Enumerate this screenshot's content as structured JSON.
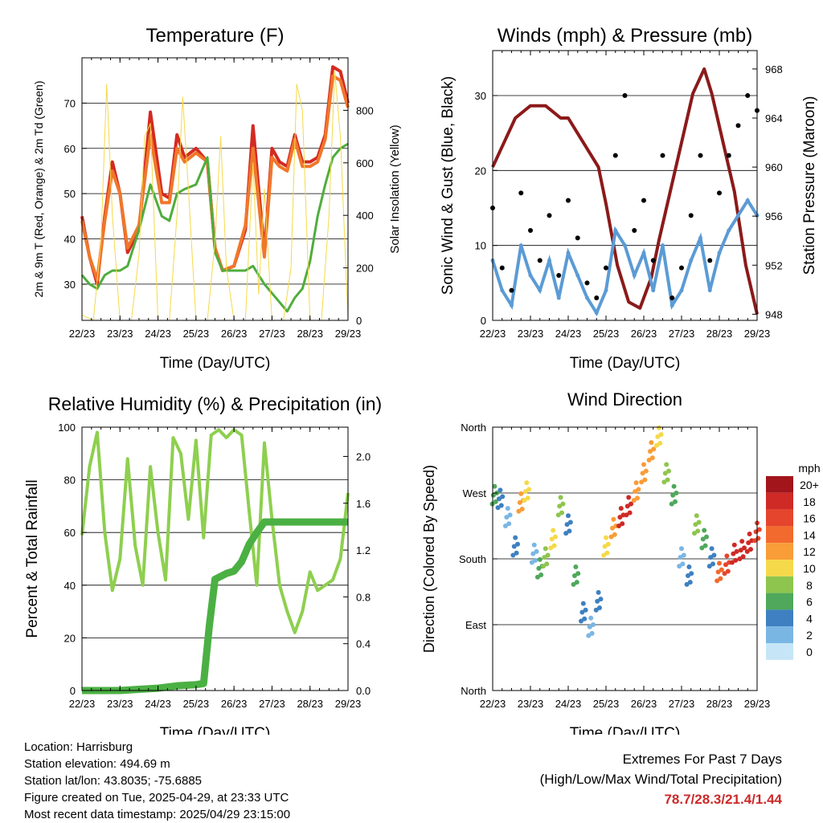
{
  "chart_data": [
    {
      "type": "line",
      "title": "Temperature (F)",
      "xlabel": "Time (Day/UTC)",
      "ylabel": "2m & 9m T (Red, Orange) & 2m Td (Green)",
      "y2label": "Solar Insolation (Yellow)",
      "x_ticks": [
        "22/23",
        "23/23",
        "24/23",
        "25/23",
        "26/23",
        "27/23",
        "28/23",
        "29/23"
      ],
      "ylim": [
        22,
        80
      ],
      "y_ticks": [
        30,
        40,
        50,
        60,
        70
      ],
      "y2lim": [
        0,
        1000
      ],
      "y2_ticks": [
        0,
        200,
        400,
        600,
        800
      ],
      "grid": true,
      "series": [
        {
          "color": "#d42a22",
          "x": [
            0,
            0.2,
            0.4,
            0.6,
            0.8,
            1.0,
            1.2,
            1.5,
            1.8,
            2.1,
            2.3,
            2.5,
            2.7,
            3.0,
            3.3,
            3.5,
            3.7,
            4.0,
            4.3,
            4.5,
            4.8,
            5.0,
            5.2,
            5.4,
            5.6,
            5.8,
            6.0,
            6.2,
            6.4,
            6.6,
            6.8,
            7.0
          ],
          "values": [
            45,
            36,
            30,
            45,
            57,
            50,
            37,
            42,
            68,
            50,
            49,
            63,
            58,
            60,
            57,
            38,
            33,
            34,
            42,
            65,
            37,
            60,
            57,
            56,
            63,
            57,
            57,
            58,
            63,
            78,
            77,
            70
          ]
        },
        {
          "color": "#f0772a",
          "x": [
            0,
            0.2,
            0.4,
            0.6,
            0.8,
            1.0,
            1.2,
            1.5,
            1.8,
            2.1,
            2.3,
            2.5,
            2.7,
            3.0,
            3.3,
            3.5,
            3.7,
            4.0,
            4.3,
            4.5,
            4.8,
            5.0,
            5.2,
            5.4,
            5.6,
            5.8,
            6.0,
            6.2,
            6.4,
            6.6,
            6.8,
            7.0
          ],
          "values": [
            44,
            36,
            31,
            44,
            55,
            50,
            38,
            43,
            63,
            48,
            48,
            60,
            57,
            59,
            57,
            38,
            33,
            34,
            43,
            60,
            36,
            58,
            56,
            55,
            62,
            56,
            56,
            57,
            62,
            76,
            75,
            69
          ]
        },
        {
          "color": "#4fad3d",
          "x": [
            0,
            0.2,
            0.4,
            0.6,
            0.8,
            1.0,
            1.2,
            1.5,
            1.8,
            2.1,
            2.3,
            2.5,
            2.7,
            3.0,
            3.3,
            3.5,
            3.7,
            4.0,
            4.3,
            4.5,
            4.8,
            5.0,
            5.2,
            5.4,
            5.6,
            5.8,
            6.0,
            6.2,
            6.4,
            6.6,
            6.8,
            7.0
          ],
          "values": [
            32,
            30,
            29,
            32,
            33,
            33,
            34,
            42,
            52,
            45,
            44,
            50,
            51,
            52,
            58,
            37,
            33,
            33,
            33,
            34,
            30,
            28,
            26,
            24,
            27,
            29,
            35,
            45,
            52,
            58,
            60,
            61
          ]
        },
        {
          "color": "#f5d94a",
          "axis": "y2",
          "x": [
            0,
            0.3,
            0.5,
            0.65,
            0.8,
            1.0,
            1.3,
            1.5,
            1.65,
            1.8,
            2.0,
            2.3,
            2.5,
            2.65,
            2.8,
            3.0,
            3.3,
            3.5,
            3.65,
            3.8,
            4.0,
            4.3,
            4.5,
            4.65,
            4.8,
            5.0,
            5.3,
            5.5,
            5.65,
            5.8,
            6.0,
            6.3,
            6.5,
            6.65,
            6.8,
            7.0
          ],
          "values": [
            20,
            0,
            300,
            900,
            400,
            0,
            0,
            250,
            700,
            750,
            0,
            0,
            400,
            850,
            500,
            0,
            0,
            300,
            700,
            200,
            0,
            0,
            600,
            100,
            500,
            0,
            0,
            200,
            900,
            800,
            0,
            0,
            400,
            950,
            700,
            0
          ]
        }
      ]
    },
    {
      "type": "scatter",
      "title": "Winds (mph) & Pressure (mb)",
      "xlabel": "Time (Day/UTC)",
      "ylabel": "Sonic Wind & Gust (Blue, Black)",
      "y2label": "Station Pressure (Maroon)",
      "x_ticks": [
        "22/23",
        "23/23",
        "24/23",
        "25/23",
        "26/23",
        "27/23",
        "28/23",
        "29/23"
      ],
      "ylim": [
        0,
        36
      ],
      "y_ticks": [
        0,
        10,
        20,
        30
      ],
      "y2lim": [
        947.5,
        969.5
      ],
      "y2_ticks": [
        948,
        952,
        956,
        960,
        964,
        968
      ],
      "grid": true,
      "series": [
        {
          "color": "#8b1a1a",
          "axis": "y2",
          "x": [
            0,
            0.3,
            0.6,
            1.0,
            1.4,
            1.8,
            2.0,
            2.4,
            2.8,
            3.0,
            3.3,
            3.6,
            3.9,
            4.2,
            4.4,
            4.7,
            5.0,
            5.3,
            5.6,
            5.8,
            6.1,
            6.4,
            6.7,
            7.0
          ],
          "values": [
            960,
            962,
            964,
            965,
            965,
            964,
            964,
            962,
            960,
            957,
            952,
            949,
            948.5,
            951,
            954,
            958,
            962,
            966,
            968,
            966,
            962,
            958,
            952,
            948
          ]
        },
        {
          "color": "#5b9bd5",
          "x": [
            0,
            0.25,
            0.5,
            0.75,
            1.0,
            1.25,
            1.5,
            1.75,
            2.0,
            2.25,
            2.5,
            2.75,
            3.0,
            3.25,
            3.5,
            3.75,
            4.0,
            4.25,
            4.5,
            4.75,
            5.0,
            5.25,
            5.5,
            5.75,
            6.0,
            6.25,
            6.5,
            6.75,
            7.0
          ],
          "values": [
            8,
            4,
            2,
            10,
            6,
            4,
            8,
            3,
            9,
            6,
            3,
            1,
            4,
            12,
            10,
            6,
            9,
            4,
            10,
            2,
            4,
            8,
            11,
            4,
            9,
            12,
            14,
            16,
            14
          ]
        },
        {
          "color": "#000000",
          "x": [
            0,
            0.25,
            0.5,
            0.75,
            1.0,
            1.25,
            1.5,
            1.75,
            2.0,
            2.25,
            2.5,
            2.75,
            3.0,
            3.25,
            3.5,
            3.75,
            4.0,
            4.25,
            4.5,
            4.75,
            5.0,
            5.25,
            5.5,
            5.75,
            6.0,
            6.25,
            6.5,
            6.75,
            7.0
          ],
          "values": [
            15,
            7,
            4,
            17,
            12,
            8,
            14,
            6,
            16,
            11,
            5,
            3,
            7,
            22,
            30,
            12,
            16,
            8,
            22,
            3,
            7,
            14,
            22,
            8,
            17,
            22,
            26,
            30,
            28
          ]
        }
      ]
    },
    {
      "type": "line",
      "title": "Relative Humidity (%) & Precipitation (in)",
      "xlabel": "Time (Day/UTC)",
      "ylabel": "Percent & Total Rainfall",
      "x_ticks": [
        "22/23",
        "23/23",
        "24/23",
        "25/23",
        "26/23",
        "27/23",
        "28/23",
        "29/23"
      ],
      "ylim": [
        0,
        100
      ],
      "y_ticks": [
        0,
        20,
        40,
        60,
        80,
        100
      ],
      "y2lim": [
        0,
        2.25
      ],
      "y2_ticks": [
        "0.0",
        "0.4",
        "0.8",
        "1.2",
        "1.6",
        "2.0"
      ],
      "grid": true,
      "series": [
        {
          "color": "#8ecf4f",
          "x": [
            0,
            0.2,
            0.4,
            0.6,
            0.8,
            1.0,
            1.2,
            1.4,
            1.6,
            1.8,
            2.0,
            2.2,
            2.4,
            2.6,
            2.8,
            3.0,
            3.2,
            3.4,
            3.6,
            3.8,
            4.0,
            4.2,
            4.4,
            4.6,
            4.8,
            5.0,
            5.2,
            5.4,
            5.6,
            5.8,
            6.0,
            6.2,
            6.4,
            6.6,
            6.8,
            7.0
          ],
          "values": [
            59,
            85,
            98,
            60,
            38,
            50,
            88,
            55,
            40,
            85,
            60,
            42,
            96,
            90,
            65,
            95,
            58,
            97,
            99,
            96,
            99,
            97,
            68,
            40,
            94,
            65,
            40,
            30,
            22,
            30,
            45,
            38,
            40,
            42,
            50,
            75
          ]
        },
        {
          "color": "#4bb043",
          "axis": "y2",
          "x": [
            0,
            0.5,
            1.0,
            1.5,
            2.0,
            2.5,
            3.0,
            3.2,
            3.35,
            3.5,
            3.8,
            4.0,
            4.2,
            4.4,
            4.6,
            4.8,
            5.0,
            5.5,
            6.0,
            6.5,
            7.0
          ],
          "values": [
            0,
            0,
            0,
            0.01,
            0.02,
            0.04,
            0.05,
            0.06,
            0.55,
            0.95,
            1.0,
            1.02,
            1.1,
            1.25,
            1.35,
            1.44,
            1.44,
            1.44,
            1.44,
            1.44,
            1.44
          ]
        }
      ]
    },
    {
      "type": "scatter",
      "title": "Wind Direction",
      "xlabel": "Time (Day/UTC)",
      "ylabel": "Direction (Colored By Speed)",
      "x_ticks": [
        "22/23",
        "23/23",
        "24/23",
        "25/23",
        "26/23",
        "27/23",
        "28/23",
        "29/23"
      ],
      "y_ticks": [
        "North",
        "East",
        "South",
        "West",
        "North"
      ],
      "ylim": [
        0,
        360
      ],
      "grid": true,
      "legend": {
        "title": "mph",
        "placement": "right",
        "labels": [
          "20+",
          "18",
          "16",
          "14",
          "12",
          "10",
          "8",
          "6",
          "4",
          "2",
          "0"
        ],
        "colors": [
          "#a1151b",
          "#cf2a26",
          "#e5452c",
          "#f26a2e",
          "#f99d38",
          "#f5d94a",
          "#8ec54e",
          "#4fa85b",
          "#3e80c1",
          "#7ab6e4",
          "#c6e6f7"
        ]
      },
      "x": [
        0.05,
        0.2,
        0.4,
        0.6,
        0.75,
        0.9,
        1.1,
        1.25,
        1.4,
        1.6,
        1.8,
        2.0,
        2.2,
        2.4,
        2.6,
        2.8,
        3.0,
        3.2,
        3.4,
        3.6,
        3.8,
        4.0,
        4.2,
        4.4,
        4.6,
        4.8,
        5.0,
        5.2,
        5.4,
        5.6,
        5.8,
        6.0,
        6.2,
        6.4,
        6.6,
        6.8,
        7.0
      ],
      "values": [
        270,
        265,
        240,
        200,
        260,
        275,
        190,
        170,
        185,
        210,
        255,
        230,
        160,
        110,
        90,
        125,
        200,
        225,
        240,
        255,
        275,
        300,
        330,
        350,
        300,
        270,
        185,
        160,
        230,
        210,
        185,
        165,
        175,
        190,
        195,
        205,
        220
      ],
      "speeds": [
        6,
        4,
        2,
        3,
        12,
        10,
        2,
        5,
        8,
        10,
        8,
        4,
        6,
        3,
        2,
        4,
        10,
        12,
        18,
        17,
        12,
        12,
        12,
        10,
        8,
        6,
        2,
        3,
        8,
        6,
        4,
        14,
        16,
        18,
        18,
        17,
        16
      ]
    }
  ],
  "footer": {
    "location": "Location: Harrisburg",
    "elevation": "Station elevation: 494.69 m",
    "latlon": "Station lat/lon: 43.8035; -75.6885",
    "created": "Figure created on Tue, 2025-04-29, at 23:33 UTC",
    "recent": "Most recent data timestamp: 2025/04/29 23:15:00"
  },
  "extremes": {
    "title": "Extremes For Past 7 Days",
    "subtitle": "(High/Low/Max Wind/Total Precipitation)",
    "values": "78.7/28.3/21.4/1.44"
  }
}
